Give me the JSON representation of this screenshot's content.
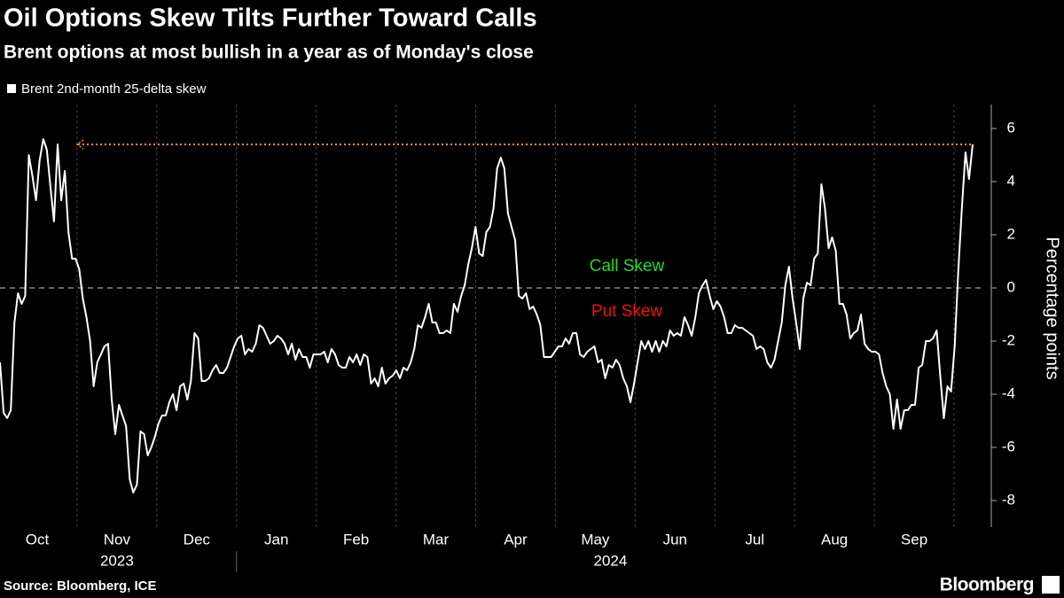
{
  "chart_data": {
    "type": "line",
    "title": "Oil Options Skew Tilts Further Toward Calls",
    "subtitle": "Brent options at most bullish in a year as of Monday's close",
    "ylabel": "Percentage points",
    "source": "Source: Bloomberg, ICE",
    "brand": "Bloomberg",
    "series": [
      {
        "name": "Brent 2nd-month 25-delta skew",
        "color": "#ffffff",
        "values": [
          -2.8,
          -4.7,
          -4.9,
          -4.6,
          -1.3,
          -0.2,
          -0.6,
          -0.3,
          5.0,
          4.2,
          3.3,
          4.8,
          5.6,
          5.2,
          3.8,
          2.5,
          5.4,
          3.3,
          4.4,
          2.1,
          1.1,
          1.1,
          0.7,
          -0.4,
          -1.1,
          -2.0,
          -3.7,
          -2.8,
          -2.5,
          -2.2,
          -2.1,
          -4.2,
          -5.5,
          -4.4,
          -4.8,
          -5.2,
          -7.2,
          -7.7,
          -7.4,
          -5.4,
          -5.5,
          -6.3,
          -6.0,
          -5.6,
          -5.1,
          -4.8,
          -4.8,
          -4.3,
          -4.0,
          -4.6,
          -3.7,
          -3.6,
          -4.2,
          -3.5,
          -1.7,
          -1.9,
          -3.5,
          -3.5,
          -3.4,
          -3.1,
          -2.9,
          -3.2,
          -3.2,
          -3.0,
          -2.6,
          -2.2,
          -1.9,
          -1.8,
          -2.5,
          -2.3,
          -2.4,
          -2.1,
          -1.4,
          -1.5,
          -1.8,
          -2.1,
          -2.0,
          -1.8,
          -1.9,
          -2.1,
          -2.5,
          -2.1,
          -2.7,
          -2.3,
          -2.6,
          -2.6,
          -3.0,
          -2.5,
          -2.5,
          -2.5,
          -2.4,
          -2.8,
          -2.3,
          -2.5,
          -2.9,
          -3.0,
          -3.0,
          -2.6,
          -2.8,
          -2.5,
          -2.9,
          -2.5,
          -2.6,
          -3.6,
          -3.4,
          -3.7,
          -3.0,
          -3.6,
          -3.4,
          -3.3,
          -3.1,
          -3.4,
          -3.0,
          -3.1,
          -2.8,
          -2.3,
          -1.4,
          -1.5,
          -1.1,
          -0.6,
          -1.3,
          -1.3,
          -1.7,
          -1.7,
          -1.6,
          -1.7,
          -0.6,
          -0.9,
          -0.3,
          0.1,
          0.9,
          1.5,
          2.3,
          1.3,
          1.2,
          2.1,
          2.3,
          3.0,
          4.5,
          4.9,
          4.5,
          2.8,
          2.3,
          1.8,
          -0.3,
          -0.4,
          -0.2,
          -0.8,
          -0.7,
          -1.0,
          -1.4,
          -2.6,
          -2.6,
          -2.6,
          -2.4,
          -2.2,
          -2.2,
          -1.9,
          -2.1,
          -1.7,
          -1.7,
          -2.5,
          -2.6,
          -2.4,
          -2.3,
          -2.2,
          -2.8,
          -2.7,
          -3.4,
          -2.9,
          -3.0,
          -2.7,
          -2.9,
          -3.4,
          -3.7,
          -4.3,
          -3.6,
          -2.8,
          -2.0,
          -2.3,
          -2.0,
          -2.4,
          -2.0,
          -2.4,
          -2.0,
          -2.2,
          -1.6,
          -1.8,
          -1.7,
          -1.8,
          -1.1,
          -1.4,
          -1.8,
          -1.1,
          -0.2,
          0.1,
          0.3,
          -0.3,
          -0.8,
          -0.5,
          -0.7,
          -1.1,
          -1.7,
          -1.7,
          -1.4,
          -1.5,
          -1.5,
          -1.6,
          -1.7,
          -1.8,
          -2.3,
          -2.2,
          -2.3,
          -2.8,
          -3.0,
          -2.7,
          -2.0,
          -1.3,
          0.1,
          0.8,
          -0.4,
          -1.3,
          -2.3,
          -0.4,
          0.2,
          0.1,
          1.1,
          1.3,
          3.9,
          3.0,
          1.5,
          1.9,
          1.4,
          -0.6,
          -0.6,
          -1.0,
          -1.9,
          -1.7,
          -1.6,
          -1.0,
          -2.1,
          -2.3,
          -2.4,
          -2.4,
          -2.5,
          -3.2,
          -3.7,
          -4.0,
          -5.3,
          -4.2,
          -5.3,
          -4.6,
          -4.6,
          -4.4,
          -4.4,
          -3.0,
          -2.9,
          -2.0,
          -2.0,
          -1.9,
          -1.6,
          -3.3,
          -4.9,
          -3.7,
          -3.9,
          -2.2,
          0.6,
          3.0,
          5.1,
          4.1,
          5.4
        ]
      }
    ],
    "reference_line": {
      "value": 5.4,
      "color": "#f7931e"
    },
    "annotations": [
      {
        "text": "Call Skew",
        "color": "#22dd22",
        "value": 0.8
      },
      {
        "text": "Put Skew",
        "color": "#ee1111",
        "value": -0.9
      }
    ],
    "xlim": [
      "2023-10",
      "2024-10"
    ],
    "xticks": [
      {
        "value": "2023-10",
        "label": "Oct"
      },
      {
        "value": "2023-11",
        "label": "Nov"
      },
      {
        "value": "2023-12",
        "label": "Dec"
      },
      {
        "value": "2024-01",
        "label": "Jan"
      },
      {
        "value": "2024-02",
        "label": "Feb"
      },
      {
        "value": "2024-03",
        "label": "Mar"
      },
      {
        "value": "2024-04",
        "label": "Apr"
      },
      {
        "value": "2024-05",
        "label": "May"
      },
      {
        "value": "2024-06",
        "label": "Jun"
      },
      {
        "value": "2024-07",
        "label": "Jul"
      },
      {
        "value": "2024-08",
        "label": "Aug"
      },
      {
        "value": "2024-09",
        "label": "Sep"
      }
    ],
    "years": [
      "2023",
      "2024"
    ],
    "ylim": [
      -9,
      6.9
    ],
    "yticks": [
      -8,
      -6,
      -4,
      -2,
      0,
      2,
      4,
      6
    ],
    "zero_line": true,
    "grid": true,
    "legend": "top-left"
  }
}
